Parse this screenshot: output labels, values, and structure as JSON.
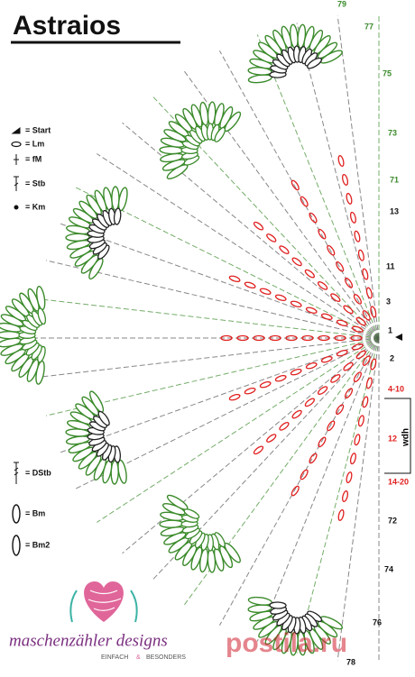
{
  "header": {
    "title": "Astraios"
  },
  "legend": [
    {
      "label": "= Start"
    },
    {
      "label": "= Lm"
    },
    {
      "label": "= fM"
    },
    {
      "label": "= Stb"
    },
    {
      "label": "= Km"
    },
    {
      "label": "= DStb"
    },
    {
      "label": "= Bm"
    },
    {
      "label": "= Bm2"
    }
  ],
  "rows": [
    {
      "label": "79",
      "color": "#3a8a2a"
    },
    {
      "label": "77",
      "color": "#3a8a2a"
    },
    {
      "label": "75",
      "color": "#3a8a2a"
    },
    {
      "label": "73",
      "color": "#3a8a2a"
    },
    {
      "label": "71",
      "color": "#3a8a2a"
    },
    {
      "label": "13",
      "color": "#111111"
    },
    {
      "label": "11",
      "color": "#111111"
    },
    {
      "label": "3",
      "color": "#111111"
    },
    {
      "label": "1",
      "color": "#111111"
    },
    {
      "label": "2",
      "color": "#111111"
    },
    {
      "label": "4-10",
      "color": "#e02020"
    },
    {
      "label": "12",
      "color": "#e02020"
    },
    {
      "label": "14-20",
      "color": "#e02020"
    },
    {
      "label": "72",
      "color": "#111111"
    },
    {
      "label": "74",
      "color": "#111111"
    },
    {
      "label": "76",
      "color": "#111111"
    },
    {
      "label": "78",
      "color": "#111111"
    }
  ],
  "repeat_label": "wdh",
  "logo": {
    "name": "maschenzähler designs",
    "tagline": [
      "EINFACH",
      "&",
      "BESONDERS"
    ]
  },
  "watermark": "postila.ru"
}
